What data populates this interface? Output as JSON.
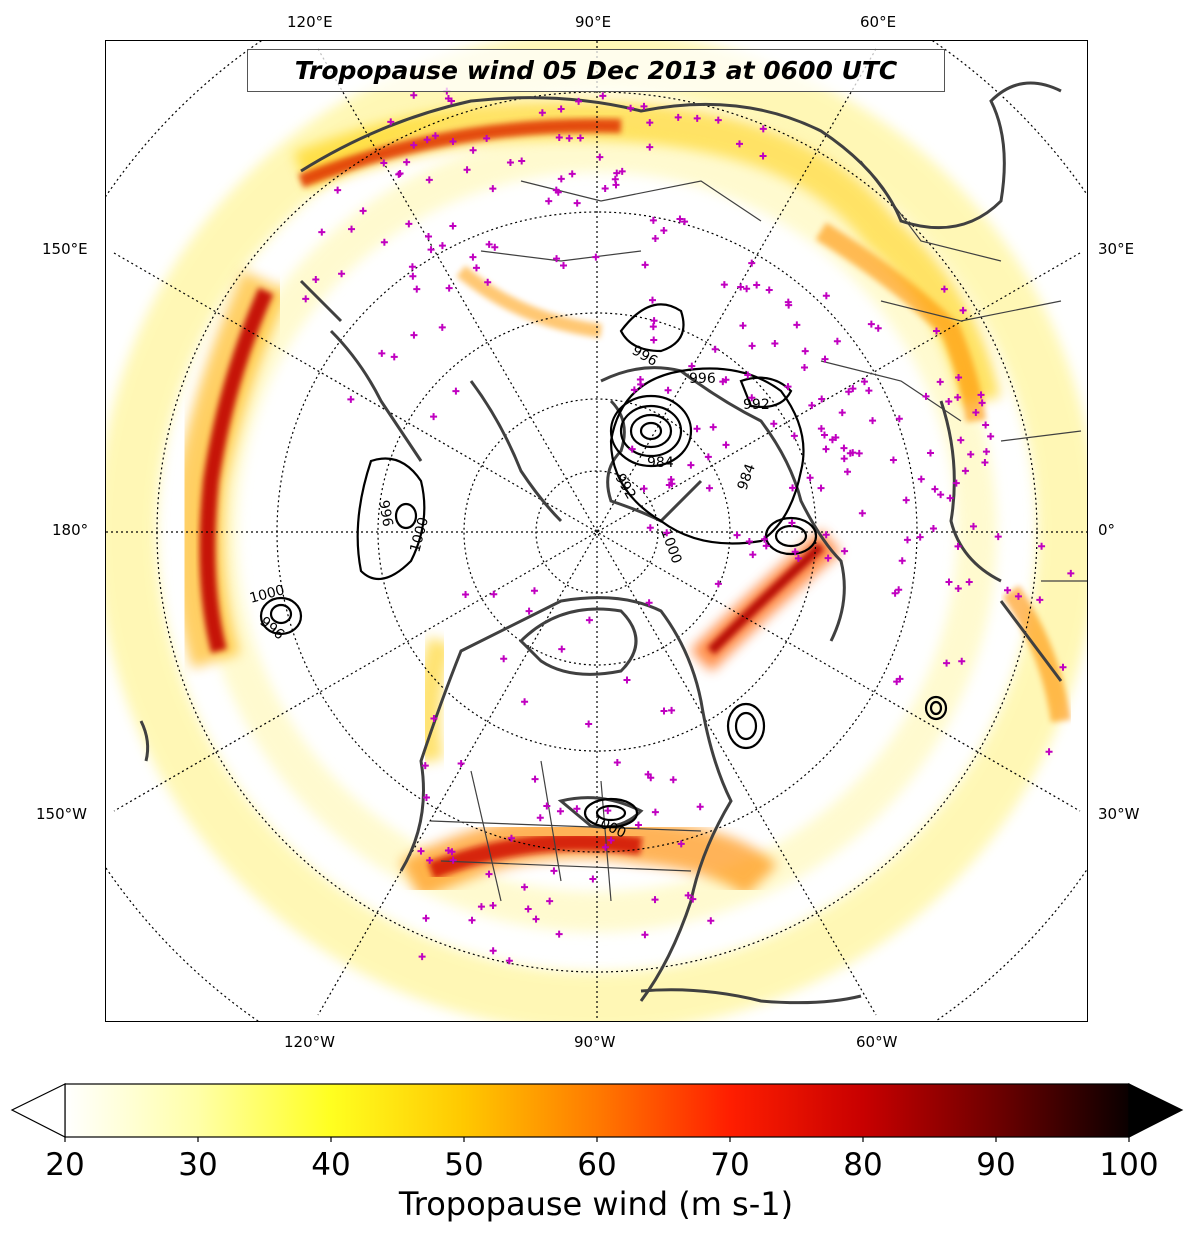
{
  "title": "Tropopause wind 05 Dec 2013 at 0600 UTC",
  "projection": "north-polar-stereographic",
  "lon_labels_top": [
    "120°E",
    "90°E",
    "60°E"
  ],
  "lon_labels_bottom": [
    "120°W",
    "90°W",
    "60°W"
  ],
  "lon_labels_left": [
    "150°E",
    "180°",
    "150°W"
  ],
  "lon_labels_right": [
    "30°E",
    "0°",
    "30°W"
  ],
  "contour_labels": [
    "996",
    "996",
    "992",
    "984",
    "992",
    "984",
    "1000",
    "996",
    "1000",
    "1000",
    "996",
    "1000"
  ],
  "station_marker_color": "#c000c0",
  "coastline_color": "#404040",
  "colorbar": {
    "label": "Tropopause wind (m s-1)",
    "min": 20,
    "max": 100,
    "ticks": [
      "20",
      "30",
      "40",
      "50",
      "60",
      "70",
      "80",
      "90",
      "100"
    ],
    "extend": "both",
    "colormap": "hot_r"
  }
}
